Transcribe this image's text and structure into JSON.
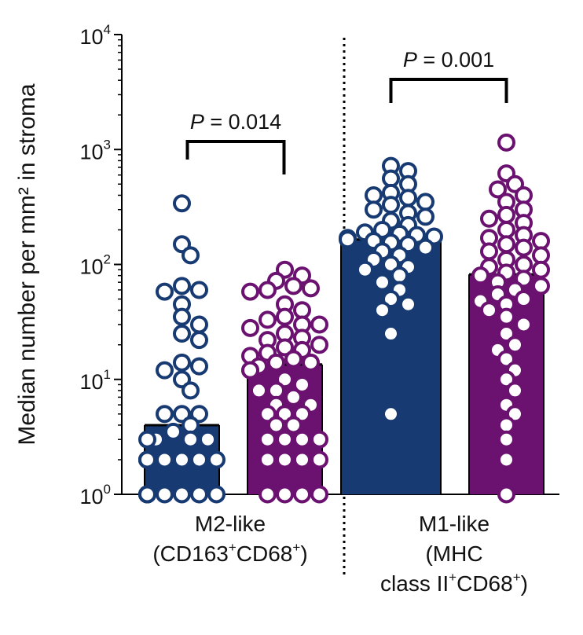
{
  "chart_data": {
    "type": "bar",
    "y_scale": "log",
    "ylim": [
      1,
      10000
    ],
    "ylabel": "Median number per mm² in stroma",
    "y_ticks": [
      {
        "base": "10",
        "exp": "0",
        "value": 1
      },
      {
        "base": "10",
        "exp": "1",
        "value": 10
      },
      {
        "base": "10",
        "exp": "2",
        "value": 100
      },
      {
        "base": "10",
        "exp": "3",
        "value": 1000
      },
      {
        "base": "10",
        "exp": "4",
        "value": 10000
      }
    ],
    "groups": [
      {
        "label_lines": [
          [
            {
              "t": "M2-like",
              "sup": false
            }
          ],
          [
            {
              "t": "(CD163",
              "sup": false
            },
            {
              "t": "+",
              "sup": true
            },
            {
              "t": "CD68",
              "sup": false
            },
            {
              "t": "+",
              "sup": true
            },
            {
              "t": ")",
              "sup": false
            }
          ]
        ],
        "p_value_label": "P",
        "p_value_text": " = 0.014",
        "bars": [
          {
            "series": "blue",
            "median": 4,
            "points": [
              340,
              150,
              120,
              65,
              60,
              58,
              45,
              35,
              30,
              25,
              22,
              14,
              13,
              12,
              10,
              8,
              5,
              5,
              5,
              4,
              3.5,
              3,
              3,
              3,
              3,
              2,
              2,
              2,
              2,
              2,
              2,
              2,
              2,
              2,
              2,
              1,
              1,
              1,
              1,
              1,
              1,
              1,
              1,
              1,
              1,
              1,
              1
            ]
          },
          {
            "series": "purple",
            "median": 13.5,
            "points": [
              90,
              80,
              72,
              65,
              62,
              60,
              58,
              45,
              40,
              35,
              33,
              30,
              30,
              28,
              25,
              23,
              22,
              20,
              19,
              18,
              17,
              16,
              15,
              14,
              14,
              13,
              12,
              12,
              10,
              9,
              8,
              8,
              7,
              6,
              6,
              5,
              5,
              5,
              4,
              4,
              3,
              3,
              3,
              3,
              2,
              2,
              2,
              2,
              1,
              1,
              1,
              1
            ]
          }
        ]
      },
      {
        "label_lines": [
          [
            {
              "t": "M1-like",
              "sup": false
            }
          ],
          [
            {
              "t": "(MHC",
              "sup": false
            }
          ],
          [
            {
              "t": "class II",
              "sup": false
            },
            {
              "t": "+",
              "sup": true
            },
            {
              "t": "CD68",
              "sup": false
            },
            {
              "t": "+",
              "sup": true
            },
            {
              "t": ")",
              "sup": false
            }
          ]
        ],
        "p_value_label": "P",
        "p_value_text": " = 0.001",
        "bars": [
          {
            "series": "blue",
            "median": 165,
            "points": [
              720,
              650,
              560,
              500,
              420,
              400,
              380,
              350,
              330,
              300,
              280,
              260,
              240,
              220,
              200,
              190,
              185,
              180,
              175,
              170,
              165,
              160,
              155,
              150,
              140,
              130,
              120,
              110,
              100,
              95,
              90,
              80,
              70,
              60,
              50,
              45,
              40,
              25,
              5
            ]
          },
          {
            "series": "purple",
            "median": 82,
            "points": [
              1150,
              620,
              500,
              450,
              400,
              350,
              300,
              270,
              250,
              230,
              200,
              180,
              170,
              160,
              150,
              140,
              130,
              120,
              110,
              100,
              95,
              90,
              85,
              80,
              75,
              70,
              65,
              60,
              55,
              50,
              48,
              45,
              40,
              35,
              30,
              25,
              20,
              18,
              15,
              12,
              10,
              8,
              6,
              5,
              4,
              3,
              2,
              1
            ]
          }
        ]
      }
    ],
    "colors": {
      "blue": "#173a72",
      "purple": "#6b1170",
      "bar_outline": "#000000"
    },
    "grid": false,
    "group_separator": "dotted"
  }
}
